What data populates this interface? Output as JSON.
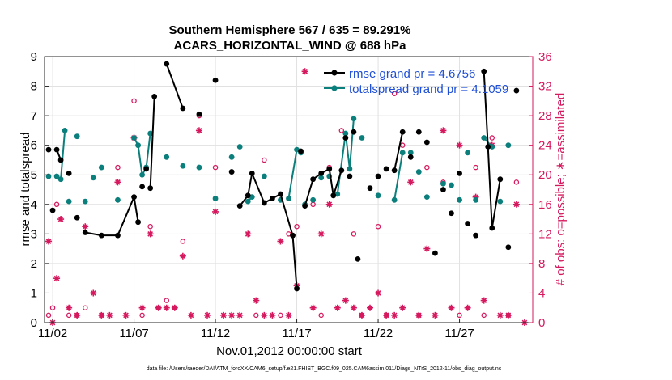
{
  "chart_data": {
    "type": "line",
    "title": "Southern Hemisphere 567 / 635 = 89.291%",
    "subtitle": "ACARS_HORIZONTAL_WIND @ 688 hPa",
    "xlabel": "Nov.01,2012 00:00:00 start",
    "ylabel_left": "rmse and totalspread",
    "ylabel_right": "# of obs: o=possible; ∗=assimilated",
    "footer": "data file: /Users/raeder/DAI/ATM_forcXX/CAM6_setup/f.e21.FHIST_BGC.f09_025.CAM6assim.011/Diags_NTrS_2012-11/obs_diag_output.nc",
    "xlim": [
      1.5,
      31.5
    ],
    "ylim_left": [
      0,
      9
    ],
    "ylim_right": [
      0,
      36
    ],
    "x_ticks": [
      2,
      7,
      12,
      17,
      22,
      27
    ],
    "x_tick_labels": [
      "11/02",
      "11/07",
      "11/12",
      "11/17",
      "11/22",
      "11/27"
    ],
    "y_ticks_left": [
      0,
      1,
      2,
      3,
      4,
      5,
      6,
      7,
      8,
      9
    ],
    "y_ticks_right": [
      0,
      4,
      8,
      12,
      16,
      20,
      24,
      28,
      32,
      36
    ],
    "grid": true,
    "colors": {
      "rmse": "#000000",
      "spread": "#0b7f7c",
      "obs": "#d6195e",
      "legend_text": "#1f4fd6"
    },
    "series": [
      {
        "name": "rmse grand pr = 4.6756",
        "axis": "left",
        "points": [
          [
            1.75,
            5.85
          ],
          [
            2.0,
            3.8
          ],
          [
            2.25,
            5.85
          ],
          [
            2.5,
            5.5
          ],
          [
            3.0,
            5.05
          ],
          [
            3.5,
            3.55
          ],
          [
            4.0,
            3.05
          ],
          [
            5.0,
            2.95
          ],
          [
            6.0,
            2.95
          ],
          [
            7.0,
            4.25
          ],
          [
            7.25,
            3.4
          ],
          [
            7.5,
            4.6
          ],
          [
            7.75,
            5.2
          ],
          [
            8.0,
            4.55
          ],
          [
            8.25,
            7.65
          ],
          [
            9.0,
            8.75
          ],
          [
            10.0,
            7.25
          ],
          [
            11.0,
            7.05
          ],
          [
            12.0,
            8.2
          ],
          [
            13.0,
            5.1
          ],
          [
            13.5,
            3.95
          ],
          [
            14.0,
            4.3
          ],
          [
            14.25,
            5.05
          ],
          [
            15.0,
            4.05
          ],
          [
            15.5,
            4.2
          ],
          [
            16.0,
            4.35
          ],
          [
            16.75,
            2.95
          ],
          [
            17.0,
            1.15
          ],
          [
            17.25,
            5.8
          ],
          [
            17.5,
            3.95
          ],
          [
            18.0,
            4.85
          ],
          [
            18.5,
            5.05
          ],
          [
            19.0,
            5.2
          ],
          [
            19.25,
            4.3
          ],
          [
            19.75,
            5.15
          ],
          [
            20.0,
            6.25
          ],
          [
            20.25,
            4.95
          ],
          [
            20.5,
            6.45
          ],
          [
            20.75,
            2.15
          ],
          [
            21.5,
            4.55
          ],
          [
            22.0,
            4.95
          ],
          [
            22.5,
            5.2
          ],
          [
            23.0,
            5.15
          ],
          [
            23.5,
            6.45
          ],
          [
            24.0,
            5.6
          ],
          [
            24.5,
            6.45
          ],
          [
            25.0,
            6.1
          ],
          [
            25.5,
            2.35
          ],
          [
            26.0,
            4.5
          ],
          [
            26.5,
            3.7
          ],
          [
            27.0,
            5.05
          ],
          [
            27.5,
            3.35
          ],
          [
            28.0,
            2.95
          ],
          [
            28.5,
            8.5
          ],
          [
            28.75,
            5.95
          ],
          [
            29.0,
            3.2
          ],
          [
            29.5,
            4.85
          ],
          [
            30.0,
            2.55
          ],
          [
            30.5,
            7.85
          ]
        ],
        "segments": [
          [
            2,
            3
          ],
          [
            6,
            10
          ],
          [
            13,
            14
          ],
          [
            15,
            16
          ],
          [
            20,
            27
          ],
          [
            29,
            34
          ],
          [
            42,
            43
          ],
          [
            53,
            56
          ]
        ]
      },
      {
        "name": "totalspread grand pr = 4.1059",
        "axis": "left",
        "points": [
          [
            1.75,
            4.95
          ],
          [
            2.25,
            4.95
          ],
          [
            2.5,
            4.85
          ],
          [
            2.75,
            6.5
          ],
          [
            3.0,
            4.1
          ],
          [
            3.5,
            6.3
          ],
          [
            4.0,
            4.1
          ],
          [
            4.5,
            4.9
          ],
          [
            5.0,
            5.25
          ],
          [
            6.0,
            4.15
          ],
          [
            7.0,
            6.25
          ],
          [
            7.25,
            6.0
          ],
          [
            7.5,
            5.0
          ],
          [
            7.75,
            5.25
          ],
          [
            8.0,
            6.4
          ],
          [
            9.0,
            5.6
          ],
          [
            10.0,
            5.3
          ],
          [
            11.0,
            5.25
          ],
          [
            12.0,
            4.2
          ],
          [
            13.0,
            5.6
          ],
          [
            13.5,
            5.95
          ],
          [
            14.0,
            4.1
          ],
          [
            14.25,
            4.25
          ],
          [
            15.0,
            4.95
          ],
          [
            16.0,
            4.15
          ],
          [
            16.5,
            4.2
          ],
          [
            17.0,
            5.85
          ],
          [
            17.25,
            5.75
          ],
          [
            17.5,
            4.0
          ],
          [
            18.0,
            4.15
          ],
          [
            18.5,
            4.9
          ],
          [
            19.0,
            4.95
          ],
          [
            19.5,
            4.35
          ],
          [
            20.0,
            6.4
          ],
          [
            20.25,
            5.2
          ],
          [
            20.5,
            6.9
          ],
          [
            21.0,
            6.25
          ],
          [
            22.0,
            4.3
          ],
          [
            23.0,
            4.15
          ],
          [
            23.5,
            5.75
          ],
          [
            24.0,
            5.75
          ],
          [
            24.5,
            5.1
          ],
          [
            25.0,
            4.25
          ],
          [
            26.0,
            4.7
          ],
          [
            26.5,
            4.65
          ],
          [
            27.0,
            4.15
          ],
          [
            27.5,
            5.75
          ],
          [
            28.0,
            4.15
          ],
          [
            28.5,
            6.25
          ],
          [
            29.0,
            5.95
          ],
          [
            29.5,
            4.1
          ],
          [
            30.0,
            6.0
          ]
        ],
        "segments": [
          [
            1,
            3
          ],
          [
            10,
            14
          ],
          [
            21,
            22
          ],
          [
            25,
            27
          ],
          [
            32,
            35
          ],
          [
            38,
            39
          ],
          [
            48,
            49
          ]
        ]
      },
      {
        "name": "possible",
        "axis": "right",
        "marker": "o",
        "points": [
          [
            1.75,
            1
          ],
          [
            2.0,
            2
          ],
          [
            2.25,
            16
          ],
          [
            3.0,
            1
          ],
          [
            3.5,
            1
          ],
          [
            4.0,
            2
          ],
          [
            5.0,
            1
          ],
          [
            6.0,
            21
          ],
          [
            7.0,
            30
          ],
          [
            7.5,
            1
          ],
          [
            8.0,
            13
          ],
          [
            8.5,
            2
          ],
          [
            9.0,
            3
          ],
          [
            9.5,
            2
          ],
          [
            10.0,
            11
          ],
          [
            11.0,
            28
          ],
          [
            12.0,
            21
          ],
          [
            14.5,
            1
          ],
          [
            15.0,
            22
          ],
          [
            16.0,
            1
          ],
          [
            16.5,
            12
          ],
          [
            17.0,
            13
          ],
          [
            18.0,
            16
          ],
          [
            18.5,
            1
          ],
          [
            19.0,
            21
          ],
          [
            19.75,
            26
          ],
          [
            20.0,
            25
          ],
          [
            20.5,
            12
          ],
          [
            21.0,
            1
          ],
          [
            22.0,
            13
          ],
          [
            22.5,
            1
          ],
          [
            23.0,
            31
          ],
          [
            23.5,
            24
          ],
          [
            24.5,
            1
          ],
          [
            25.0,
            21
          ],
          [
            26.0,
            19
          ],
          [
            27.0,
            1
          ],
          [
            28.0,
            21
          ],
          [
            28.5,
            1
          ],
          [
            29.0,
            25
          ],
          [
            30.0,
            1
          ],
          [
            30.5,
            19
          ]
        ]
      },
      {
        "name": "assimilated",
        "axis": "right",
        "marker": "*",
        "points": [
          [
            1.75,
            11
          ],
          [
            2.0,
            0
          ],
          [
            2.25,
            6
          ],
          [
            2.5,
            14
          ],
          [
            3.0,
            2
          ],
          [
            3.5,
            1
          ],
          [
            4.0,
            13
          ],
          [
            4.5,
            4
          ],
          [
            5.0,
            1
          ],
          [
            5.5,
            1
          ],
          [
            6.0,
            19
          ],
          [
            6.5,
            1
          ],
          [
            7.0,
            25
          ],
          [
            7.5,
            2
          ],
          [
            8.0,
            12
          ],
          [
            8.5,
            2
          ],
          [
            9.0,
            2
          ],
          [
            9.5,
            2
          ],
          [
            10.0,
            9
          ],
          [
            10.5,
            1
          ],
          [
            11.0,
            26
          ],
          [
            11.5,
            1
          ],
          [
            12.0,
            15
          ],
          [
            12.5,
            1
          ],
          [
            13.0,
            1
          ],
          [
            13.5,
            1
          ],
          [
            14.0,
            12
          ],
          [
            14.5,
            3
          ],
          [
            15.0,
            1
          ],
          [
            15.5,
            1
          ],
          [
            16.0,
            11
          ],
          [
            16.5,
            1
          ],
          [
            17.0,
            5
          ],
          [
            17.5,
            34
          ],
          [
            18.0,
            2
          ],
          [
            18.5,
            12
          ],
          [
            19.0,
            16
          ],
          [
            19.5,
            2
          ],
          [
            20.0,
            3
          ],
          [
            20.5,
            2
          ],
          [
            21.0,
            1
          ],
          [
            21.5,
            2
          ],
          [
            22.0,
            4
          ],
          [
            22.5,
            1
          ],
          [
            23.0,
            1
          ],
          [
            23.5,
            2
          ],
          [
            24.0,
            19
          ],
          [
            24.5,
            1
          ],
          [
            25.0,
            10
          ],
          [
            25.5,
            1
          ],
          [
            26.0,
            26
          ],
          [
            26.5,
            2
          ],
          [
            27.0,
            24
          ],
          [
            27.5,
            2
          ],
          [
            28.0,
            17
          ],
          [
            28.5,
            3
          ],
          [
            29.0,
            24
          ],
          [
            29.5,
            1
          ],
          [
            30.0,
            1
          ],
          [
            30.5,
            16
          ],
          [
            31.0,
            0
          ]
        ]
      }
    ]
  }
}
